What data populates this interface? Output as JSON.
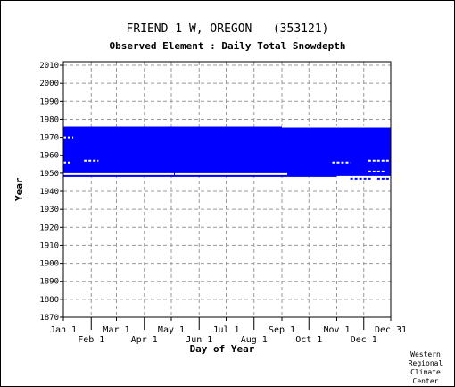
{
  "title": "FRIEND 1 W, OREGON   (353121)",
  "subtitle": "Observed Element : Daily Total Snowdepth",
  "credit": "Western Regional Climate Center",
  "colors": {
    "data": "#0000ff",
    "grid": "#999999",
    "axis": "#000000"
  },
  "chart_data": {
    "type": "scatter",
    "title": "FRIEND 1 W, OREGON   (353121)",
    "subtitle": "Observed Element : Daily Total Snowdepth",
    "xlabel": "Day of Year",
    "ylabel": "Year",
    "xlim": [
      1,
      365
    ],
    "ylim": [
      1870,
      2012
    ],
    "grid": true,
    "x_ticks": [
      {
        "label": "Jan 1",
        "day": 1,
        "row": 1
      },
      {
        "label": "Feb 1",
        "day": 32,
        "row": 2
      },
      {
        "label": "Mar 1",
        "day": 60,
        "row": 1
      },
      {
        "label": "Apr 1",
        "day": 91,
        "row": 2
      },
      {
        "label": "May 1",
        "day": 121,
        "row": 1
      },
      {
        "label": "Jun 1",
        "day": 152,
        "row": 2
      },
      {
        "label": "Jul 1",
        "day": 182,
        "row": 1
      },
      {
        "label": "Aug 1",
        "day": 213,
        "row": 2
      },
      {
        "label": "Sep 1",
        "day": 244,
        "row": 1
      },
      {
        "label": "Oct 1",
        "day": 274,
        "row": 2
      },
      {
        "label": "Nov 1",
        "day": 305,
        "row": 1
      },
      {
        "label": "Dec 1",
        "day": 335,
        "row": 2
      },
      {
        "label": "Dec 31",
        "day": 365,
        "row": 1
      }
    ],
    "y_ticks": [
      1870,
      1880,
      1890,
      1900,
      1910,
      1920,
      1930,
      1940,
      1950,
      1960,
      1970,
      1980,
      1990,
      2000,
      2010
    ],
    "observed_periods": [
      {
        "year_start": 1948,
        "year_end": 1976,
        "day_start": 1,
        "day_end": 365,
        "note": "daily observations recorded"
      }
    ],
    "gaps": [
      {
        "year_start": 1949,
        "year_end": 1950,
        "day_start": 1,
        "day_end": 124
      },
      {
        "year_start": 1949,
        "year_end": 1950,
        "day_start": 125,
        "day_end": 250
      },
      {
        "year_start": 1947.5,
        "year_end": 1948.5,
        "day_start": 305,
        "day_end": 365
      },
      {
        "year_start": 1975.5,
        "year_end": 1976.5,
        "day_start": 244,
        "day_end": 365
      }
    ],
    "isolated_marks": [
      {
        "year": 1970,
        "day_start": 1,
        "day_end": 12
      },
      {
        "year": 1956,
        "day_start": 1,
        "day_end": 10
      },
      {
        "year": 1957,
        "day_start": 24,
        "day_end": 40
      },
      {
        "year": 1956,
        "day_start": 300,
        "day_end": 320
      },
      {
        "year": 1957,
        "day_start": 340,
        "day_end": 365
      },
      {
        "year": 1951,
        "day_start": 340,
        "day_end": 358
      },
      {
        "year": 1947,
        "day_start": 320,
        "day_end": 343
      },
      {
        "year": 1947,
        "day_start": 350,
        "day_end": 365
      }
    ]
  }
}
